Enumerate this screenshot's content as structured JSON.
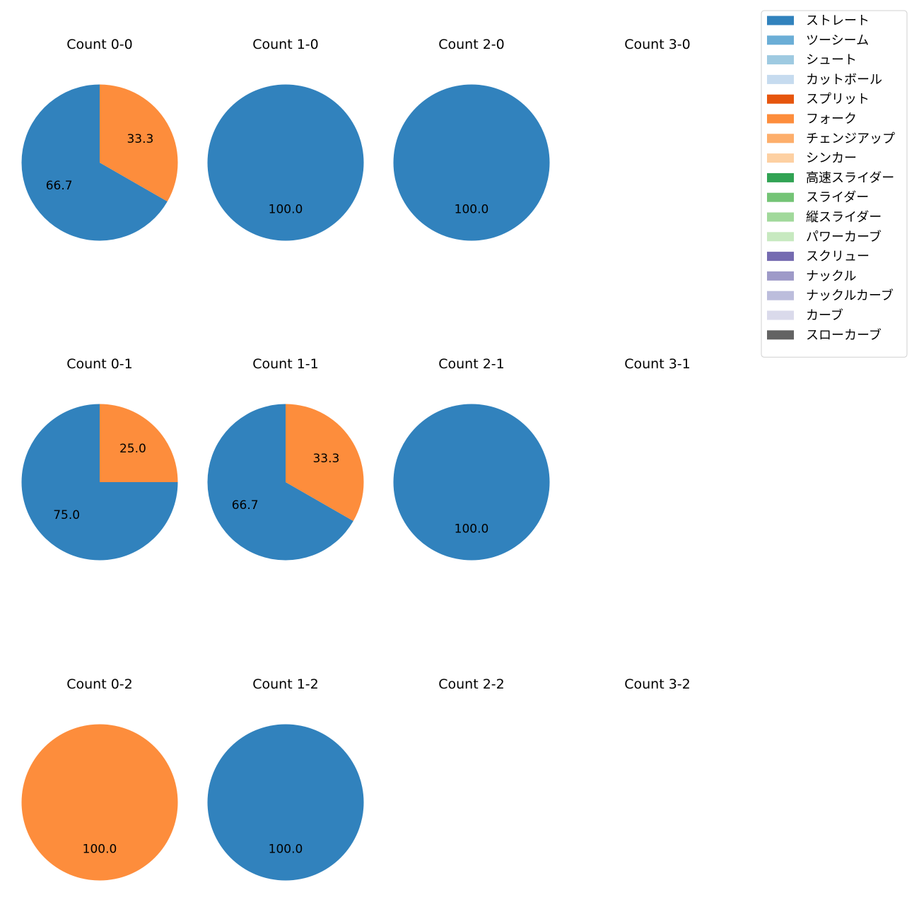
{
  "legend": {
    "items": [
      {
        "label": "ストレート",
        "color": "#3182bd"
      },
      {
        "label": "ツーシーム",
        "color": "#6baed6"
      },
      {
        "label": "シュート",
        "color": "#9ecae1"
      },
      {
        "label": "カットボール",
        "color": "#c6dbef"
      },
      {
        "label": "スプリット",
        "color": "#e6550d"
      },
      {
        "label": "フォーク",
        "color": "#fd8d3c"
      },
      {
        "label": "チェンジアップ",
        "color": "#fdae6b"
      },
      {
        "label": "シンカー",
        "color": "#fdd0a2"
      },
      {
        "label": "高速スライダー",
        "color": "#31a354"
      },
      {
        "label": "スライダー",
        "color": "#74c476"
      },
      {
        "label": "縦スライダー",
        "color": "#a1d99b"
      },
      {
        "label": "パワーカーブ",
        "color": "#c7e9c0"
      },
      {
        "label": "スクリュー",
        "color": "#756bb1"
      },
      {
        "label": "ナックル",
        "color": "#9e9ac8"
      },
      {
        "label": "ナックルカーブ",
        "color": "#bcbddc"
      },
      {
        "label": "カーブ",
        "color": "#dadaeb"
      },
      {
        "label": "スローカーブ",
        "color": "#636363"
      }
    ]
  },
  "chart_data": [
    {
      "type": "pie",
      "title": "Count 0-0",
      "slices": [
        {
          "label": "ストレート",
          "value": 66.7,
          "text": "66.7"
        },
        {
          "label": "フォーク",
          "value": 33.3,
          "text": "33.3"
        }
      ]
    },
    {
      "type": "pie",
      "title": "Count 1-0",
      "slices": [
        {
          "label": "ストレート",
          "value": 100.0,
          "text": "100.0"
        }
      ]
    },
    {
      "type": "pie",
      "title": "Count 2-0",
      "slices": [
        {
          "label": "ストレート",
          "value": 100.0,
          "text": "100.0"
        }
      ]
    },
    {
      "type": "pie",
      "title": "Count 3-0",
      "slices": []
    },
    {
      "type": "pie",
      "title": "Count 0-1",
      "slices": [
        {
          "label": "ストレート",
          "value": 75.0,
          "text": "75.0"
        },
        {
          "label": "フォーク",
          "value": 25.0,
          "text": "25.0"
        }
      ]
    },
    {
      "type": "pie",
      "title": "Count 1-1",
      "slices": [
        {
          "label": "ストレート",
          "value": 66.7,
          "text": "66.7"
        },
        {
          "label": "フォーク",
          "value": 33.3,
          "text": "33.3"
        }
      ]
    },
    {
      "type": "pie",
      "title": "Count 2-1",
      "slices": [
        {
          "label": "ストレート",
          "value": 100.0,
          "text": "100.0"
        }
      ]
    },
    {
      "type": "pie",
      "title": "Count 3-1",
      "slices": []
    },
    {
      "type": "pie",
      "title": "Count 0-2",
      "slices": [
        {
          "label": "フォーク",
          "value": 100.0,
          "text": "100.0"
        }
      ]
    },
    {
      "type": "pie",
      "title": "Count 1-2",
      "slices": [
        {
          "label": "ストレート",
          "value": 100.0,
          "text": "100.0"
        }
      ]
    },
    {
      "type": "pie",
      "title": "Count 2-2",
      "slices": []
    },
    {
      "type": "pie",
      "title": "Count 3-2",
      "slices": []
    }
  ]
}
